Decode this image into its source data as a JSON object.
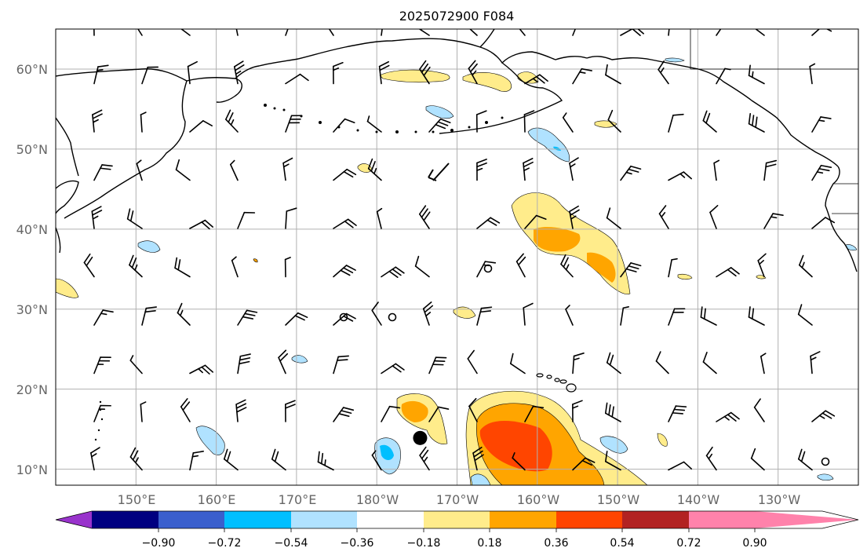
{
  "title": "2025072900 F084",
  "lon_labels": [
    "150°E",
    "160°E",
    "170°E",
    "180°W",
    "170°W",
    "160°W",
    "150°W",
    "140°W",
    "130°W"
  ],
  "lat_labels": [
    "60°N",
    "50°N",
    "40°N",
    "30°N",
    "20°N",
    "10°N"
  ],
  "map_extent": {
    "lon_min": 140,
    "lon_max": 240,
    "lat_min": 8,
    "lat_max": 65
  },
  "grid": true,
  "colorbar": {
    "colors": [
      "#9933cc",
      "#000080",
      "#3a5fcd",
      "#00bfff",
      "#b0e2ff",
      "#ffffff",
      "#ffec8b",
      "#ffa500",
      "#ff4500",
      "#b22222",
      "#ff82ab"
    ],
    "tick_labels": [
      "−0.90",
      "−0.72",
      "−0.54",
      "−0.36",
      "−0.18",
      "0.18",
      "0.36",
      "0.54",
      "0.72",
      "0.90"
    ],
    "extend": "both"
  },
  "markers": [
    {
      "name": "low-center-dot",
      "lon": 185.4,
      "lat": 13.9
    }
  ]
}
